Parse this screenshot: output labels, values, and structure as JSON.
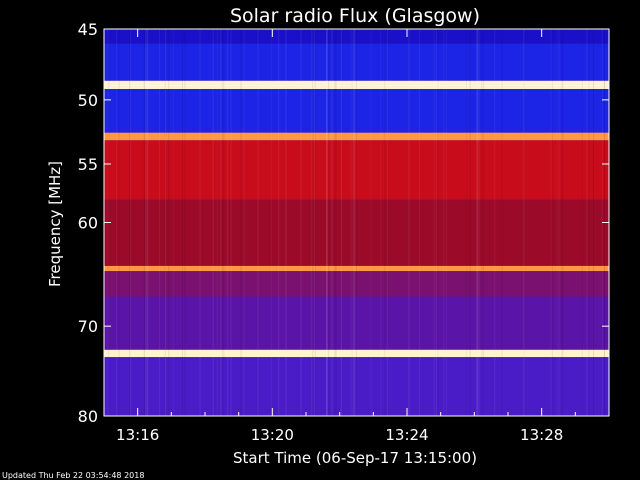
{
  "chart_data": {
    "type": "heatmap",
    "title": "Solar radio Flux (Glasgow)",
    "xlabel": "Start Time (06-Sep-17 13:15:00)",
    "ylabel": "Frequency [MHz]",
    "x_unit": "minutes after 13:15:00 UT",
    "xlim": [
      0,
      15
    ],
    "ylim": [
      45,
      80
    ],
    "x_ticks": [
      {
        "label": "13:16",
        "value": 1
      },
      {
        "label": "13:20",
        "value": 5
      },
      {
        "label": "13:24",
        "value": 9
      },
      {
        "label": "13:28",
        "value": 13
      }
    ],
    "y_ticks": [
      45,
      50,
      55,
      60,
      70,
      80
    ],
    "y_scale": "log",
    "frequency_bands_mhz": [
      {
        "from": 45.0,
        "to": 46.0,
        "level": "dark-blue"
      },
      {
        "from": 46.0,
        "to": 48.6,
        "level": "blue"
      },
      {
        "from": 48.6,
        "to": 49.2,
        "level": "white-hot"
      },
      {
        "from": 49.2,
        "to": 52.5,
        "level": "blue"
      },
      {
        "from": 52.5,
        "to": 53.1,
        "level": "orange-hot"
      },
      {
        "from": 53.1,
        "to": 58.0,
        "level": "red"
      },
      {
        "from": 58.0,
        "to": 64.0,
        "level": "dark-red"
      },
      {
        "from": 64.0,
        "to": 64.5,
        "level": "orange-hot"
      },
      {
        "from": 64.5,
        "to": 67.0,
        "level": "purple-red"
      },
      {
        "from": 67.0,
        "to": 72.5,
        "level": "purple"
      },
      {
        "from": 72.5,
        "to": 73.3,
        "level": "white-hot"
      },
      {
        "from": 73.3,
        "to": 80.0,
        "level": "purple-blue"
      }
    ],
    "grid": false,
    "legend": "none"
  },
  "footer": {
    "updated": "Updated Thu Feb 22 03:54:48 2018"
  },
  "colors": {
    "background": "#000000",
    "axis": "#ffffff",
    "dark_blue": "#1a10c8",
    "blue": "#1c24e6",
    "red": "#c80c1c",
    "dark_red": "#9c0a2a",
    "purple": "#5a14a8",
    "purple_blue": "#4a1cc8",
    "hot_white": "#fff4d0",
    "hot_orange": "#ff9840"
  }
}
